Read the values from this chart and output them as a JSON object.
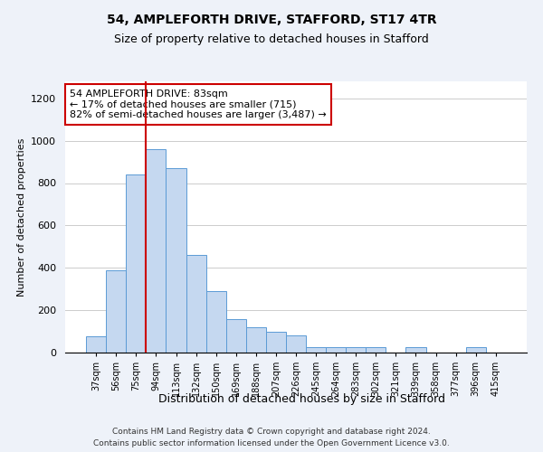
{
  "title1": "54, AMPLEFORTH DRIVE, STAFFORD, ST17 4TR",
  "title2": "Size of property relative to detached houses in Stafford",
  "xlabel": "Distribution of detached houses by size in Stafford",
  "ylabel": "Number of detached properties",
  "footnote1": "Contains HM Land Registry data © Crown copyright and database right 2024.",
  "footnote2": "Contains public sector information licensed under the Open Government Licence v3.0.",
  "annotation_title": "54 AMPLEFORTH DRIVE: 83sqm",
  "annotation_line1": "← 17% of detached houses are smaller (715)",
  "annotation_line2": "82% of semi-detached houses are larger (3,487) →",
  "categories": [
    "37sqm",
    "56sqm",
    "75sqm",
    "94sqm",
    "113sqm",
    "132sqm",
    "150sqm",
    "169sqm",
    "188sqm",
    "207sqm",
    "226sqm",
    "245sqm",
    "264sqm",
    "283sqm",
    "302sqm",
    "321sqm",
    "339sqm",
    "358sqm",
    "377sqm",
    "396sqm",
    "415sqm"
  ],
  "values": [
    75,
    390,
    840,
    960,
    870,
    460,
    290,
    160,
    120,
    100,
    80,
    25,
    25,
    25,
    25,
    0,
    25,
    0,
    0,
    25,
    0
  ],
  "bar_color": "#c5d8f0",
  "bar_edge_color": "#5b9bd5",
  "vline_color": "#cc0000",
  "annotation_box_color": "#ffffff",
  "annotation_box_edge": "#cc0000",
  "ylim": [
    0,
    1280
  ],
  "yticks": [
    0,
    200,
    400,
    600,
    800,
    1000,
    1200
  ],
  "background_color": "#eef2f9",
  "plot_bg_color": "#ffffff",
  "grid_color": "#cccccc"
}
